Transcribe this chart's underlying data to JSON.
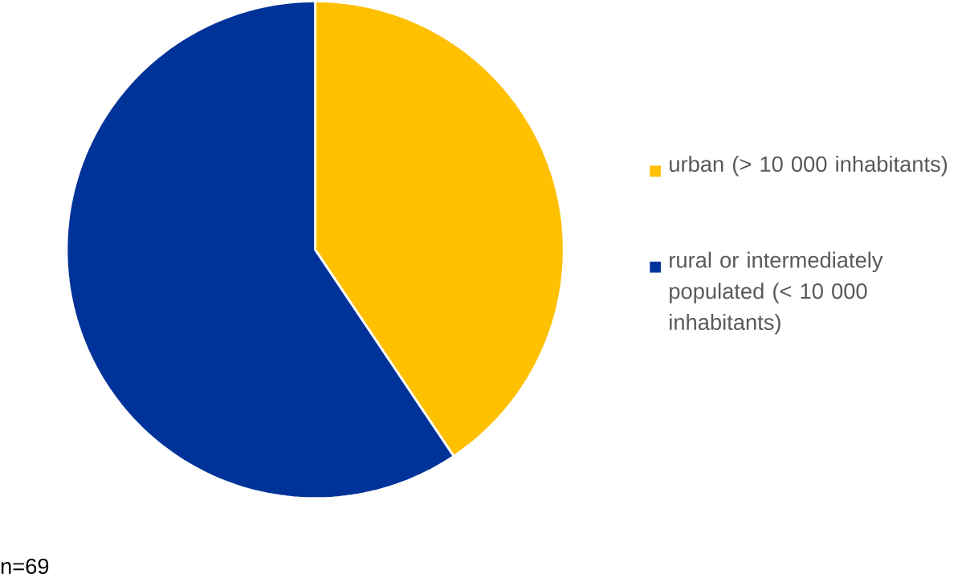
{
  "chart_data": {
    "type": "pie",
    "categories": [
      "urban (> 10 000 inhabitants)",
      "rural or intermediately populated (< 10 000 inhabitants)"
    ],
    "values": [
      40.6,
      59.4
    ],
    "colors": [
      "#ffc000",
      "#003399"
    ],
    "legend": "right",
    "annotations": [
      "n=69"
    ]
  }
}
